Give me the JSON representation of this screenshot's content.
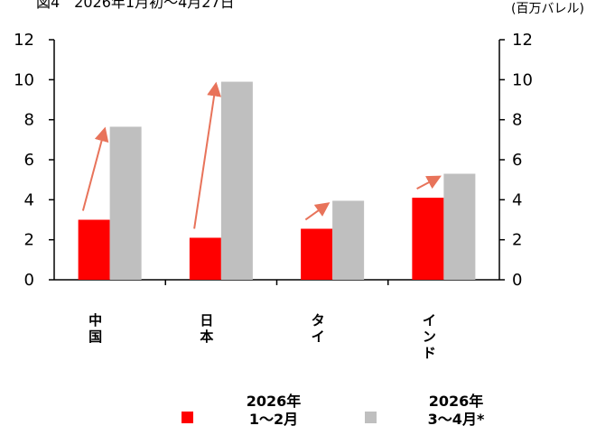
{
  "page_title_fragment": "図4　2026年1月初〜4月27日",
  "chart_data": {
    "type": "bar",
    "title": "",
    "unit_label": "(百万バレル)",
    "categories": [
      "中国",
      "日本",
      "タイ",
      "インド"
    ],
    "series": [
      {
        "name": "2026年 1〜2月",
        "values": [
          3.0,
          2.1,
          2.55,
          4.1
        ],
        "color": "#ff0000"
      },
      {
        "name": "2026年 3〜4月*",
        "values": [
          7.65,
          9.9,
          3.95,
          5.3
        ],
        "color": "#bfbfbf"
      }
    ],
    "ylim": [
      0,
      12
    ],
    "yticks": [
      0,
      2,
      4,
      6,
      8,
      10,
      12
    ],
    "right_axis_mirrors_left": true,
    "arrow_color": "#e8735a",
    "legend_position": "bottom",
    "grid": false
  }
}
